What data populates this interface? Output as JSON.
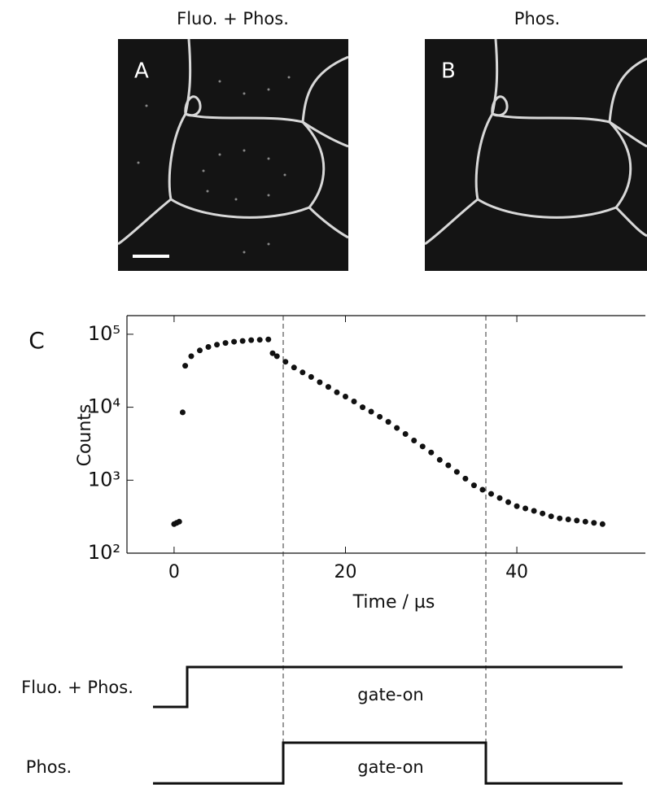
{
  "panels": [
    {
      "title": "Fluo. + Phos.",
      "label": "A"
    },
    {
      "title": "Phos.",
      "label": "B"
    }
  ],
  "chart_data": {
    "type": "scatter",
    "label": "C",
    "xlabel": "Time / µs",
    "ylabel": "Counts",
    "x": [
      0,
      0.3,
      0.6,
      1,
      1.3,
      2,
      3,
      4,
      5,
      6,
      7,
      8,
      9,
      10,
      11,
      11.5,
      12,
      13,
      14,
      15,
      16,
      17,
      18,
      19,
      20,
      21,
      22,
      23,
      24,
      25,
      26,
      27,
      28,
      29,
      30,
      31,
      32,
      33,
      34,
      35,
      36,
      37,
      38,
      39,
      40,
      41,
      42,
      43,
      44,
      45,
      46,
      47,
      48,
      49,
      50
    ],
    "values": [
      250,
      260,
      270,
      8500,
      37000,
      50000,
      60000,
      67000,
      72000,
      76000,
      79000,
      81000,
      83000,
      84000,
      85000,
      55000,
      50000,
      42000,
      35000,
      30000,
      26000,
      22000,
      19000,
      16000,
      14000,
      12000,
      10000,
      8700,
      7400,
      6300,
      5200,
      4300,
      3500,
      2900,
      2400,
      1900,
      1600,
      1300,
      1050,
      850,
      740,
      650,
      570,
      500,
      440,
      410,
      380,
      350,
      320,
      300,
      290,
      280,
      270,
      260,
      250
    ],
    "color": "#111111",
    "xlim": [
      -5.5,
      55
    ],
    "xticks": [
      0,
      20,
      40
    ],
    "ylim": [
      100,
      180000
    ],
    "yscale": "log",
    "yticks": [
      {
        "value": 100,
        "label": "10²"
      },
      {
        "value": 1000,
        "label": "10³"
      },
      {
        "value": 10000,
        "label": "10⁴"
      },
      {
        "value": 100000,
        "label": "10⁵"
      }
    ]
  },
  "timing": {
    "rows": [
      {
        "label": "Fluo. + Phos.",
        "text": "gate-on"
      },
      {
        "label": "Phos.",
        "text": "gate-on"
      }
    ]
  }
}
